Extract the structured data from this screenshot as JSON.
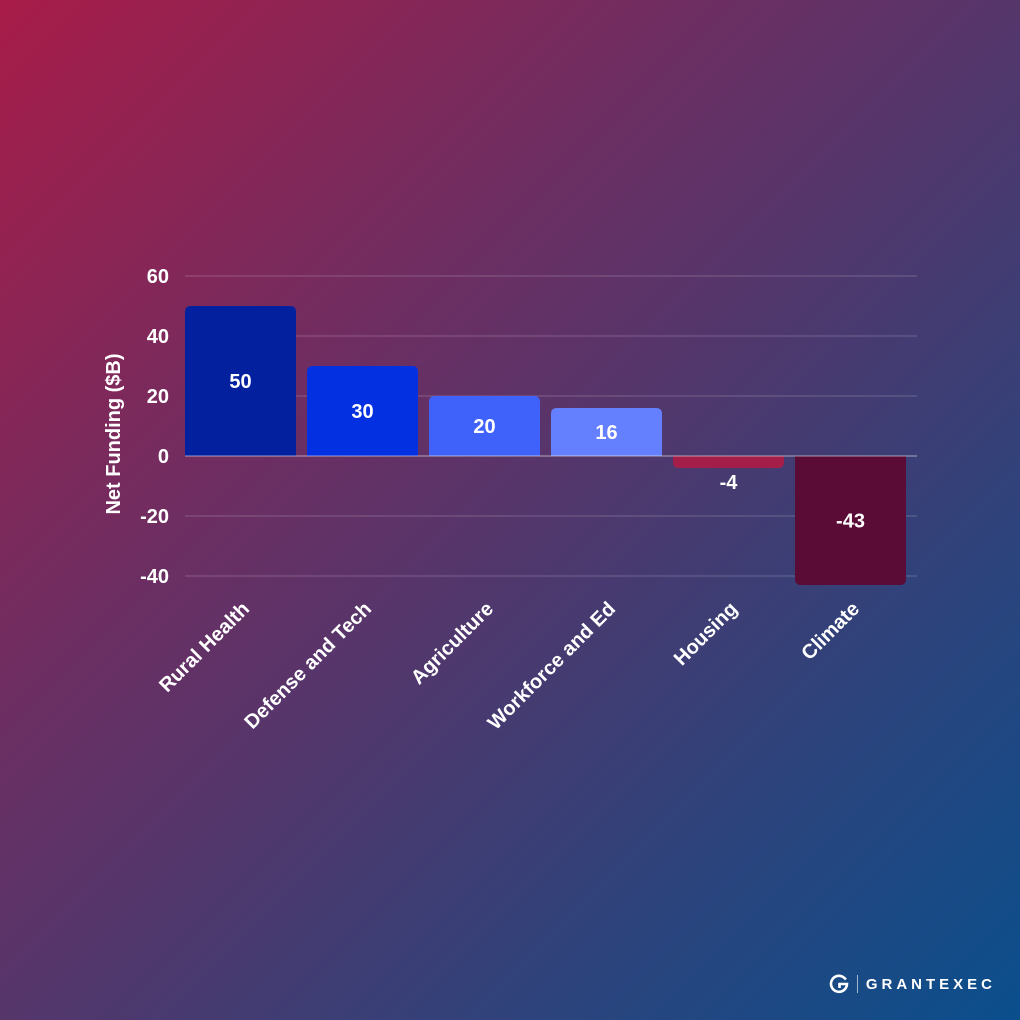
{
  "chart_data": {
    "type": "bar",
    "ylabel": "Net Funding ($B)",
    "categories": [
      "Rural Health",
      "Defense and Tech",
      "Agriculture",
      "Workforce and Ed",
      "Housing",
      "Climate"
    ],
    "values": [
      50,
      30,
      20,
      16,
      -4,
      -43
    ],
    "data_labels": [
      "50",
      "30",
      "20",
      "16",
      "-4",
      "-43"
    ],
    "bar_colors": [
      "#03209e",
      "#0330e0",
      "#3f62fb",
      "#6480fe",
      "#a31f4a",
      "#5a0b36"
    ],
    "ylim": [
      -40,
      60
    ],
    "yticks": [
      60,
      40,
      20,
      0,
      -20,
      -40
    ],
    "grid": true
  },
  "brand": {
    "name": "GRANTEXEC",
    "logo_icon": "grantexec-g-logo"
  }
}
